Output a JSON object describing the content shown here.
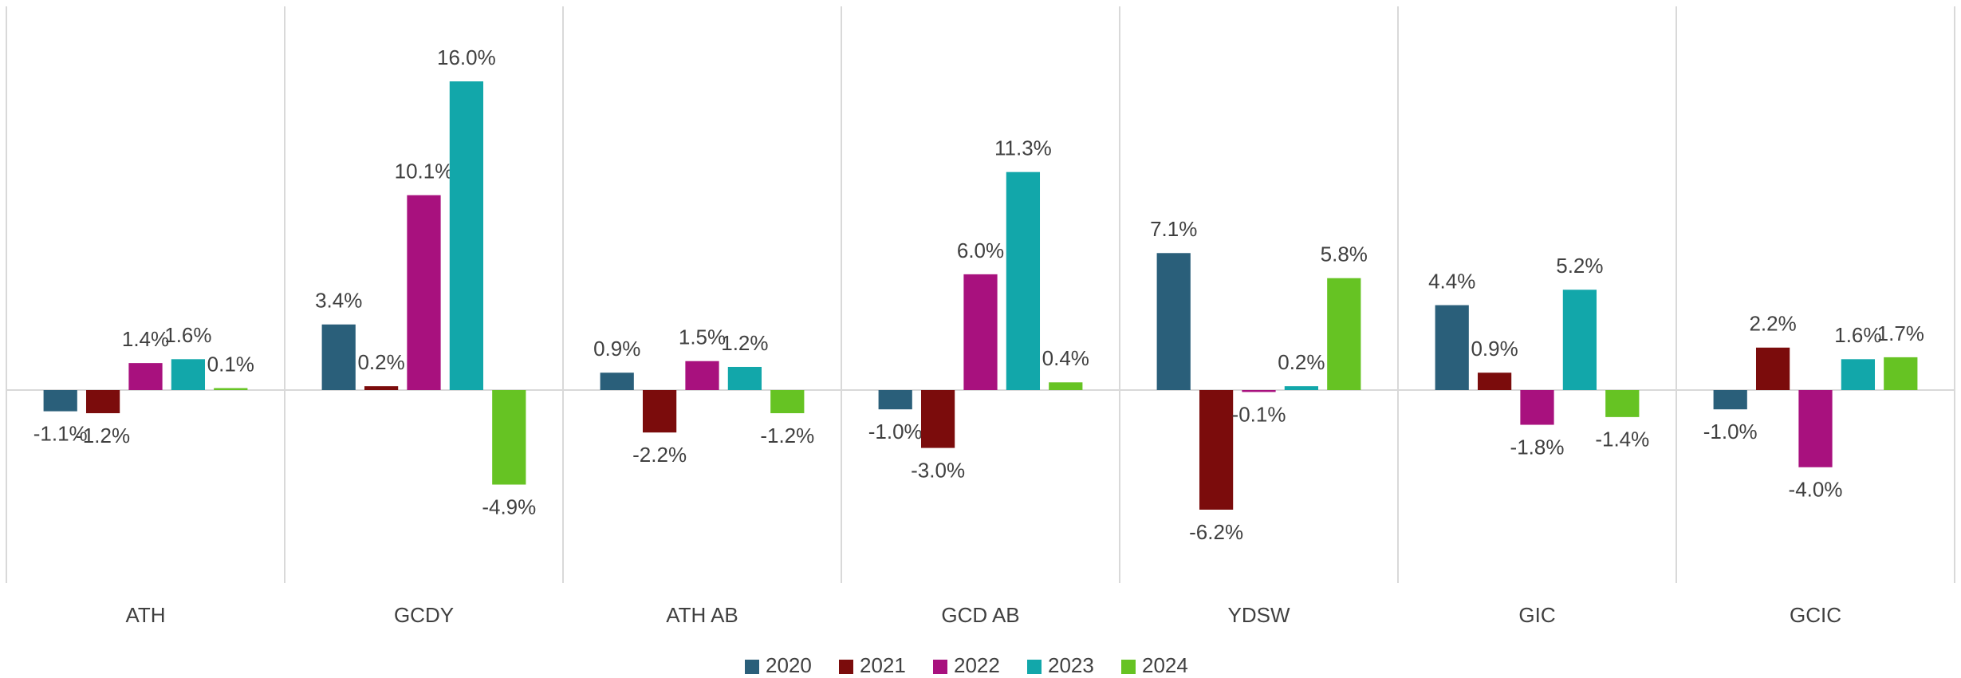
{
  "chart_data": {
    "type": "bar",
    "categories": [
      "ATH",
      "GCDY",
      "ATH AB",
      "GCD AB",
      "YDSW",
      "GIC",
      "GCIC"
    ],
    "series": [
      {
        "name": "2020",
        "color": "#2a5f7a",
        "values": [
          -1.1,
          3.4,
          0.9,
          -1.0,
          7.1,
          4.4,
          -1.0
        ],
        "value_labels": [
          "-1.1%",
          "3.4%",
          "0.9%",
          "-1.0%",
          "7.1%",
          "4.4%",
          "-1.0%"
        ]
      },
      {
        "name": "2021",
        "color": "#7b0c0c",
        "values": [
          -1.2,
          0.2,
          -2.2,
          -3.0,
          -6.2,
          0.9,
          2.2
        ],
        "value_labels": [
          "-1.2%",
          "0.2%",
          "-2.2%",
          "-3.0%",
          "-6.2%",
          "0.9%",
          "2.2%"
        ]
      },
      {
        "name": "2022",
        "color": "#a8117e",
        "values": [
          1.4,
          10.1,
          1.5,
          6.0,
          -0.1,
          -1.8,
          -4.0
        ],
        "value_labels": [
          "1.4%",
          "10.1%",
          "1.5%",
          "6.0%",
          "-0.1%",
          "-1.8%",
          "-4.0%"
        ]
      },
      {
        "name": "2023",
        "color": "#12a7aa",
        "values": [
          1.6,
          16.0,
          1.2,
          11.3,
          0.2,
          5.2,
          1.6
        ],
        "value_labels": [
          "1.6%",
          "16.0%",
          "1.2%",
          "11.3%",
          "0.2%",
          "5.2%",
          "1.6%"
        ]
      },
      {
        "name": "2024",
        "color": "#66c323",
        "values": [
          0.1,
          -4.9,
          -1.2,
          0.4,
          5.8,
          -1.4,
          1.7
        ],
        "value_labels": [
          "0.1%",
          "-4.9%",
          "-1.2%",
          "0.4%",
          "5.8%",
          "-1.4%",
          "1.7%"
        ]
      }
    ],
    "legend": "bottom"
  }
}
